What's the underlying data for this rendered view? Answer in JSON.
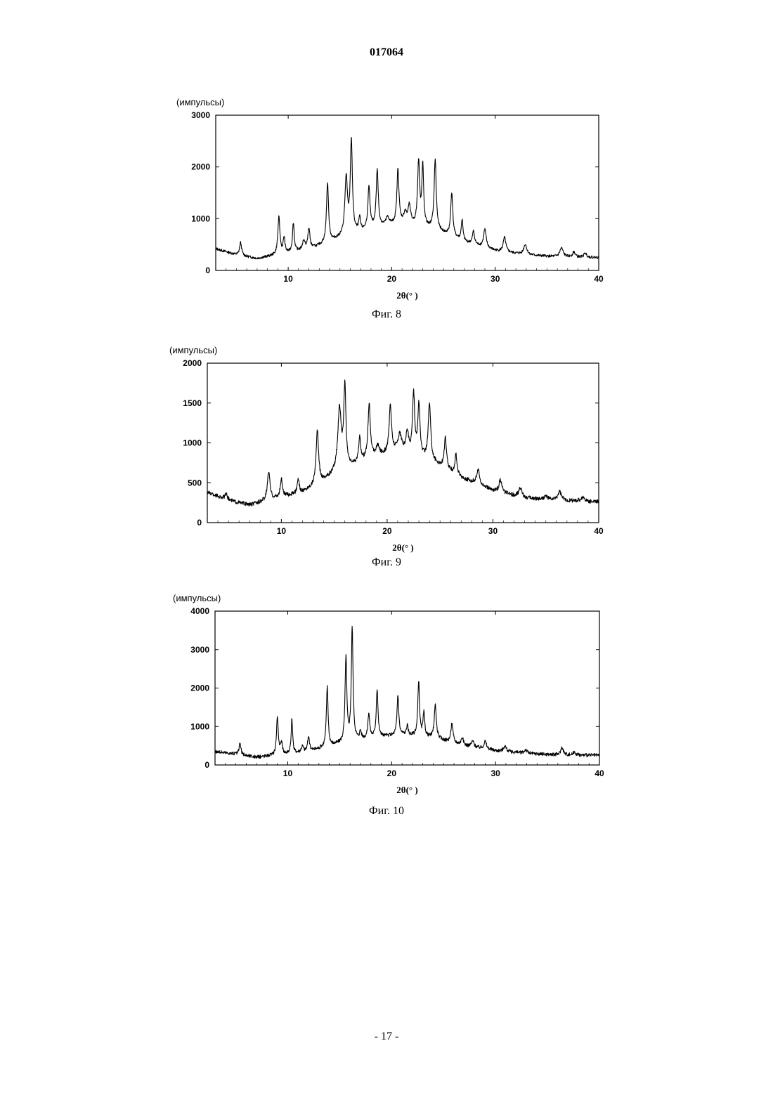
{
  "header": {
    "doc_number": "017064"
  },
  "footer": {
    "page_number": "- 17 -"
  },
  "chart_data": [
    {
      "type": "line",
      "caption": "Фиг. 8",
      "ylabel": "(импульсы)",
      "xlabel": "2θ(° )",
      "xlim": [
        3,
        40
      ],
      "ylim": [
        0,
        3000
      ],
      "xticks": [
        10,
        20,
        30,
        40
      ],
      "yticks": [
        0,
        1000,
        2000,
        3000
      ],
      "ytick_labels": [
        "0",
        "1000",
        "2000",
        "3000"
      ],
      "baseline": [
        [
          3,
          420
        ],
        [
          5,
          300
        ],
        [
          7,
          230
        ],
        [
          9,
          300
        ],
        [
          12,
          400
        ],
        [
          15,
          620
        ],
        [
          18,
          800
        ],
        [
          21,
          900
        ],
        [
          24,
          800
        ],
        [
          27,
          550
        ],
        [
          30,
          380
        ],
        [
          33,
          300
        ],
        [
          36,
          260
        ],
        [
          40,
          250
        ]
      ],
      "peaks": [
        [
          5.4,
          250,
          0.12
        ],
        [
          9.1,
          720,
          0.12
        ],
        [
          9.6,
          300,
          0.1
        ],
        [
          10.5,
          560,
          0.1
        ],
        [
          11.5,
          180,
          0.15
        ],
        [
          12.0,
          400,
          0.12
        ],
        [
          13.8,
          1150,
          0.12
        ],
        [
          15.6,
          1100,
          0.15
        ],
        [
          16.1,
          1800,
          0.12
        ],
        [
          16.9,
          250,
          0.1
        ],
        [
          17.8,
          800,
          0.12
        ],
        [
          18.6,
          1100,
          0.12
        ],
        [
          19.6,
          150,
          0.2
        ],
        [
          20.6,
          1050,
          0.12
        ],
        [
          21.3,
          200,
          0.15
        ],
        [
          21.7,
          350,
          0.15
        ],
        [
          22.6,
          1250,
          0.12
        ],
        [
          23.0,
          1150,
          0.1
        ],
        [
          24.2,
          1350,
          0.12
        ],
        [
          25.8,
          850,
          0.12
        ],
        [
          26.8,
          400,
          0.1
        ],
        [
          27.9,
          250,
          0.12
        ],
        [
          29.0,
          350,
          0.15
        ],
        [
          30.9,
          280,
          0.15
        ],
        [
          32.9,
          200,
          0.18
        ],
        [
          36.4,
          170,
          0.2
        ],
        [
          37.6,
          100,
          0.15
        ],
        [
          38.7,
          80,
          0.15
        ]
      ],
      "noise": 25
    },
    {
      "type": "line",
      "caption": "Фиг. 9",
      "ylabel": "(импульсы)",
      "xlabel": "2θ(° )",
      "xlim": [
        3,
        40
      ],
      "ylim": [
        0,
        2000
      ],
      "xticks": [
        10,
        20,
        30,
        40
      ],
      "yticks": [
        0,
        500,
        1000,
        1500,
        2000
      ],
      "ytick_labels": [
        "0",
        "500",
        "1000",
        "1500",
        "2000"
      ],
      "baseline": [
        [
          3,
          380
        ],
        [
          5,
          280
        ],
        [
          7,
          220
        ],
        [
          9,
          290
        ],
        [
          12,
          380
        ],
        [
          15,
          600
        ],
        [
          18,
          780
        ],
        [
          21,
          900
        ],
        [
          24,
          780
        ],
        [
          27,
          560
        ],
        [
          30,
          400
        ],
        [
          33,
          310
        ],
        [
          36,
          280
        ],
        [
          40,
          260
        ]
      ],
      "peaks": [
        [
          4.8,
          60,
          0.15
        ],
        [
          8.8,
          360,
          0.14
        ],
        [
          10.0,
          220,
          0.12
        ],
        [
          11.6,
          160,
          0.12
        ],
        [
          13.4,
          660,
          0.14
        ],
        [
          15.5,
          780,
          0.2
        ],
        [
          16.0,
          1000,
          0.12
        ],
        [
          17.4,
          300,
          0.12
        ],
        [
          18.3,
          700,
          0.13
        ],
        [
          19.1,
          120,
          0.2
        ],
        [
          20.3,
          600,
          0.13
        ],
        [
          21.2,
          200,
          0.2
        ],
        [
          21.9,
          250,
          0.15
        ],
        [
          22.5,
          770,
          0.12
        ],
        [
          23.0,
          650,
          0.12
        ],
        [
          24.0,
          700,
          0.14
        ],
        [
          25.5,
          380,
          0.13
        ],
        [
          26.5,
          250,
          0.12
        ],
        [
          28.6,
          180,
          0.18
        ],
        [
          30.7,
          160,
          0.15
        ],
        [
          32.6,
          110,
          0.18
        ],
        [
          35.0,
          40,
          0.2
        ],
        [
          36.3,
          110,
          0.2
        ],
        [
          38.5,
          50,
          0.2
        ]
      ],
      "noise": 25
    },
    {
      "type": "line",
      "caption": "Фиг. 10",
      "ylabel": "(импульсы)",
      "xlabel": "2θ(° )",
      "xlim": [
        3,
        40
      ],
      "ylim": [
        0,
        4000
      ],
      "xticks": [
        10,
        20,
        30,
        40
      ],
      "yticks": [
        0,
        1000,
        2000,
        3000,
        4000
      ],
      "ytick_labels": [
        "0",
        "1000",
        "2000",
        "3000",
        "4000"
      ],
      "baseline": [
        [
          3,
          350
        ],
        [
          5,
          280
        ],
        [
          7,
          200
        ],
        [
          9,
          260
        ],
        [
          12,
          350
        ],
        [
          15,
          550
        ],
        [
          18,
          700
        ],
        [
          21,
          780
        ],
        [
          24,
          700
        ],
        [
          27,
          500
        ],
        [
          30,
          370
        ],
        [
          33,
          300
        ],
        [
          36,
          260
        ],
        [
          40,
          250
        ]
      ],
      "peaks": [
        [
          5.4,
          300,
          0.1
        ],
        [
          9.0,
          1000,
          0.1
        ],
        [
          9.4,
          300,
          0.1
        ],
        [
          10.4,
          900,
          0.08
        ],
        [
          11.4,
          150,
          0.12
        ],
        [
          12.0,
          400,
          0.1
        ],
        [
          13.8,
          1550,
          0.1
        ],
        [
          15.6,
          2200,
          0.1
        ],
        [
          16.2,
          2950,
          0.1
        ],
        [
          17.0,
          200,
          0.1
        ],
        [
          17.8,
          650,
          0.1
        ],
        [
          18.6,
          1250,
          0.1
        ],
        [
          20.6,
          1050,
          0.1
        ],
        [
          21.5,
          250,
          0.1
        ],
        [
          22.6,
          1400,
          0.1
        ],
        [
          23.1,
          600,
          0.1
        ],
        [
          24.2,
          850,
          0.12
        ],
        [
          25.8,
          500,
          0.12
        ],
        [
          26.8,
          200,
          0.12
        ],
        [
          27.8,
          150,
          0.15
        ],
        [
          29.0,
          200,
          0.15
        ],
        [
          30.9,
          150,
          0.15
        ],
        [
          32.9,
          100,
          0.15
        ],
        [
          36.4,
          200,
          0.15
        ],
        [
          37.6,
          80,
          0.15
        ]
      ],
      "noise": 45
    }
  ]
}
